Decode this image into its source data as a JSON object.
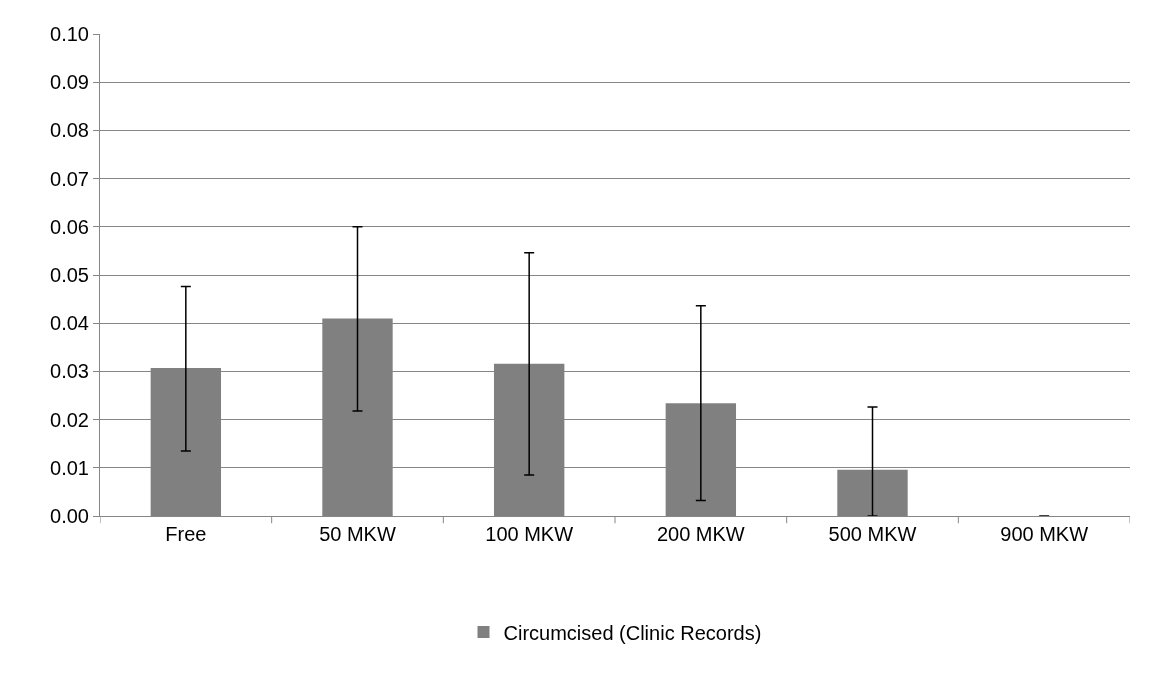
{
  "chart_data": {
    "type": "bar",
    "categories": [
      "Free",
      "50 MKW",
      "100 MKW",
      "200 MKW",
      "500 MKW",
      "900 MKW"
    ],
    "series": [
      {
        "name": "Circumcised (Clinic Records)",
        "color": "#808080",
        "values": [
          0.0307,
          0.041,
          0.0316,
          0.0234,
          0.0096,
          0
        ],
        "errors": [
          [
            0.0135,
            0.0476
          ],
          [
            0.0218,
            0.06
          ],
          [
            0.0085,
            0.0546
          ],
          [
            0.0032,
            0.0436
          ],
          [
            0,
            0.0226
          ],
          null
        ]
      }
    ],
    "ylim": [
      0,
      0.1
    ],
    "yticks": [
      {
        "value": 0,
        "label": "0.00"
      },
      {
        "value": 0.01,
        "label": "0.01"
      },
      {
        "value": 0.02,
        "label": "0.02"
      },
      {
        "value": 0.03,
        "label": "0.03"
      },
      {
        "value": 0.04,
        "label": "0.04"
      },
      {
        "value": 0.05,
        "label": "0.05"
      },
      {
        "value": 0.06,
        "label": "0.06"
      },
      {
        "value": 0.07,
        "label": "0.07"
      },
      {
        "value": 0.08,
        "label": "0.08"
      },
      {
        "value": 0.09,
        "label": "0.09"
      },
      {
        "value": 0.1,
        "label": "0.10"
      }
    ],
    "grid": "y",
    "legend": "bottom"
  }
}
